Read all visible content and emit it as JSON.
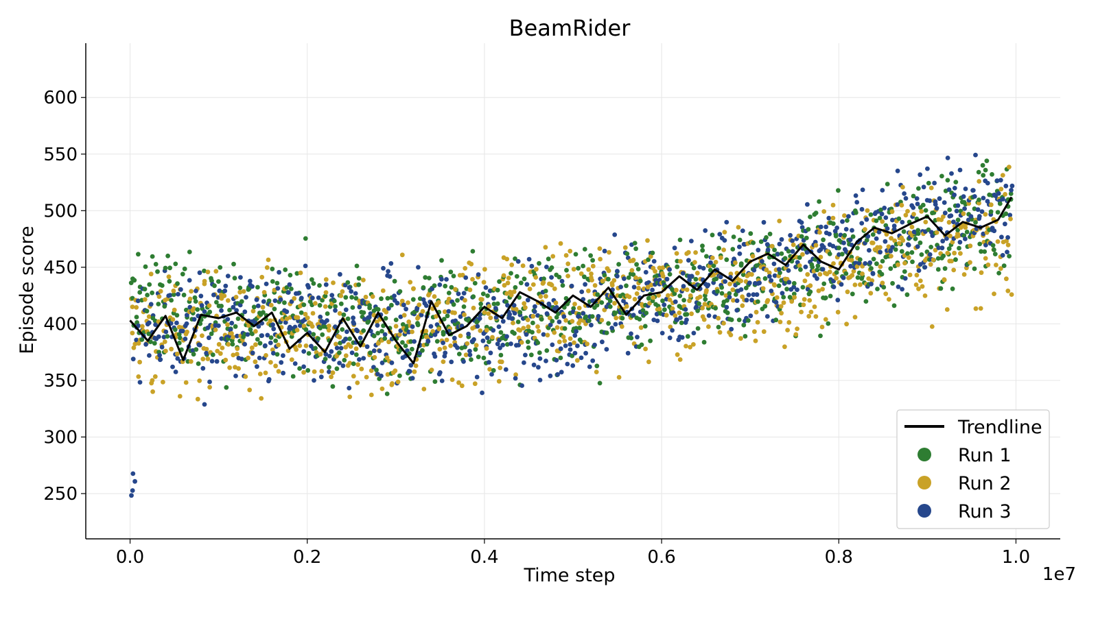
{
  "chart_data": {
    "type": "scatter",
    "title": "BeamRider",
    "xlabel": "Time step",
    "ylabel": "Episode score",
    "x_offset_label": "1e7",
    "xlim": [
      -0.05,
      1.05
    ],
    "ylim": [
      210,
      648
    ],
    "x_ticks": [
      0.0,
      0.2,
      0.4,
      0.6,
      0.8,
      1.0
    ],
    "x_tick_labels": [
      "0.0",
      "0.2",
      "0.4",
      "0.6",
      "0.8",
      "1.0"
    ],
    "y_ticks": [
      250,
      300,
      350,
      400,
      450,
      500,
      550,
      600
    ],
    "y_tick_labels": [
      "250",
      "300",
      "350",
      "400",
      "450",
      "500",
      "550",
      "600"
    ],
    "grid": true,
    "legend_position": "bottom-right",
    "legend": [
      "Trendline",
      "Run 1",
      "Run 2",
      "Run 3"
    ],
    "series": [
      {
        "name": "Trendline",
        "kind": "line",
        "color": "#000000",
        "x": [
          0.0,
          0.02,
          0.04,
          0.06,
          0.08,
          0.1,
          0.12,
          0.14,
          0.16,
          0.18,
          0.2,
          0.22,
          0.24,
          0.26,
          0.28,
          0.3,
          0.32,
          0.34,
          0.36,
          0.38,
          0.4,
          0.42,
          0.44,
          0.46,
          0.48,
          0.5,
          0.52,
          0.54,
          0.56,
          0.58,
          0.6,
          0.62,
          0.64,
          0.66,
          0.68,
          0.7,
          0.72,
          0.74,
          0.76,
          0.78,
          0.8,
          0.82,
          0.84,
          0.86,
          0.88,
          0.9,
          0.92,
          0.94,
          0.96,
          0.98,
          0.995
        ],
        "y": [
          403,
          385,
          407,
          368,
          408,
          405,
          410,
          398,
          410,
          378,
          392,
          375,
          405,
          380,
          410,
          385,
          365,
          420,
          390,
          398,
          415,
          405,
          428,
          420,
          410,
          425,
          415,
          432,
          408,
          425,
          428,
          442,
          430,
          448,
          438,
          455,
          462,
          452,
          470,
          455,
          448,
          472,
          485,
          480,
          488,
          495,
          478,
          490,
          485,
          492,
          512
        ]
      },
      {
        "name": "Run 1",
        "kind": "scatter",
        "color": "#2e7d32",
        "trend": [
          [
            0.0,
            410
          ],
          [
            0.3,
            400
          ],
          [
            0.5,
            415
          ],
          [
            0.7,
            440
          ],
          [
            0.85,
            470
          ],
          [
            1.0,
            495
          ]
        ],
        "spread": 42
      },
      {
        "name": "Run 2",
        "kind": "scatter",
        "color": "#c9a227",
        "trend": [
          [
            0.0,
            395
          ],
          [
            0.3,
            390
          ],
          [
            0.5,
            420
          ],
          [
            0.7,
            430
          ],
          [
            0.85,
            460
          ],
          [
            1.0,
            480
          ]
        ],
        "spread": 45
      },
      {
        "name": "Run 3",
        "kind": "scatter",
        "color": "#26478c",
        "trend": [
          [
            0.0,
            400
          ],
          [
            0.3,
            395
          ],
          [
            0.5,
            405
          ],
          [
            0.7,
            445
          ],
          [
            0.85,
            480
          ],
          [
            1.0,
            505
          ]
        ],
        "spread": 40
      }
    ]
  }
}
